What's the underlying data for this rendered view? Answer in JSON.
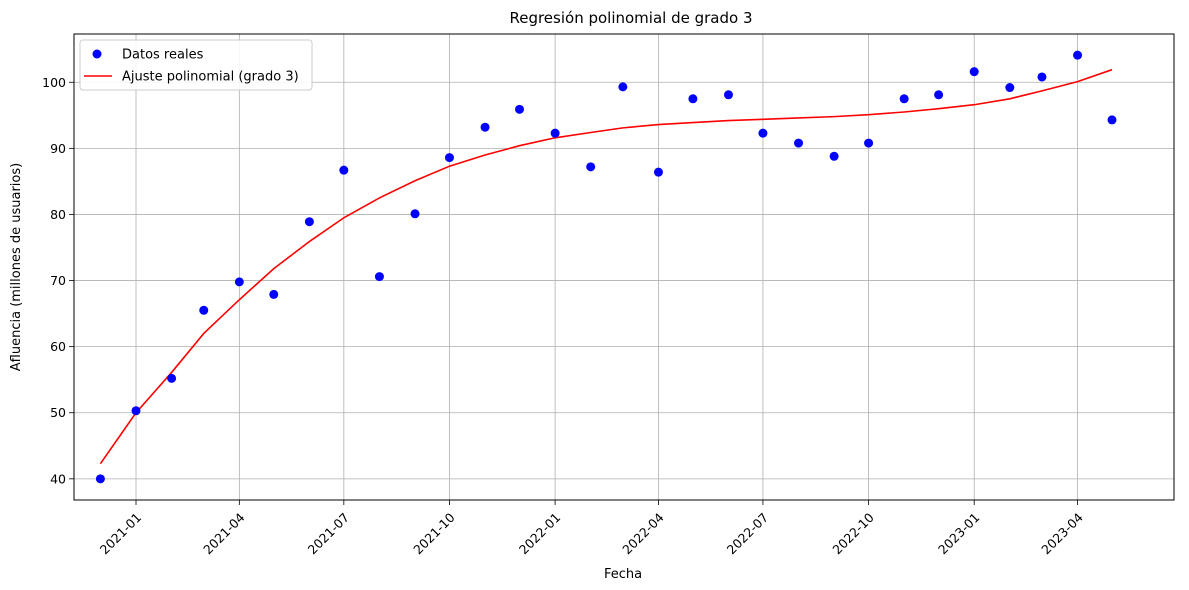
{
  "chart_data": {
    "type": "scatter",
    "title": "Regresión polinomial de grado 3",
    "xlabel": "Fecha",
    "ylabel": "Afluencia (millones de usuarios)",
    "x_axis": "date",
    "xlim": [
      "2020-11-08",
      "2023-06-24"
    ],
    "ylim": [
      36.8,
      107.3
    ],
    "x_ticks": [
      "2021-01",
      "2021-04",
      "2021-07",
      "2021-10",
      "2022-01",
      "2022-04",
      "2022-07",
      "2022-10",
      "2023-01",
      "2023-04"
    ],
    "y_ticks": [
      40,
      50,
      60,
      70,
      80,
      90,
      100
    ],
    "grid": true,
    "legend_position": "top-left",
    "series": [
      {
        "name": "Datos reales",
        "kind": "scatter",
        "color": "#0000ff",
        "points": [
          [
            "2020-12-01",
            40.0
          ],
          [
            "2021-01-01",
            50.3
          ],
          [
            "2021-02-01",
            55.2
          ],
          [
            "2021-03-01",
            65.5
          ],
          [
            "2021-04-01",
            69.8
          ],
          [
            "2021-05-01",
            67.9
          ],
          [
            "2021-06-01",
            78.9
          ],
          [
            "2021-07-01",
            86.7
          ],
          [
            "2021-08-01",
            70.6
          ],
          [
            "2021-09-01",
            80.1
          ],
          [
            "2021-10-01",
            88.6
          ],
          [
            "2021-11-01",
            93.2
          ],
          [
            "2021-12-01",
            95.9
          ],
          [
            "2022-01-01",
            92.3
          ],
          [
            "2022-02-01",
            87.2
          ],
          [
            "2022-03-01",
            99.3
          ],
          [
            "2022-04-01",
            86.4
          ],
          [
            "2022-05-01",
            97.5
          ],
          [
            "2022-06-01",
            98.1
          ],
          [
            "2022-07-01",
            92.3
          ],
          [
            "2022-08-01",
            90.8
          ],
          [
            "2022-09-01",
            88.8
          ],
          [
            "2022-10-01",
            90.8
          ],
          [
            "2022-11-01",
            97.5
          ],
          [
            "2022-12-01",
            98.1
          ],
          [
            "2023-01-01",
            101.6
          ],
          [
            "2023-02-01",
            99.2
          ],
          [
            "2023-03-01",
            100.8
          ],
          [
            "2023-04-01",
            104.1
          ],
          [
            "2023-05-01",
            94.3
          ]
        ]
      },
      {
        "name": "Ajuste polinomial (grado 3)",
        "kind": "line",
        "color": "#ff0000",
        "points": [
          [
            "2020-12-01",
            42.3
          ],
          [
            "2021-01-01",
            50.0
          ],
          [
            "2021-02-01",
            56.1
          ],
          [
            "2021-03-01",
            62.0
          ],
          [
            "2021-04-01",
            67.1
          ],
          [
            "2021-05-01",
            71.8
          ],
          [
            "2021-06-01",
            75.9
          ],
          [
            "2021-07-01",
            79.5
          ],
          [
            "2021-08-01",
            82.5
          ],
          [
            "2021-09-01",
            85.1
          ],
          [
            "2021-10-01",
            87.3
          ],
          [
            "2021-11-01",
            89.0
          ],
          [
            "2021-12-01",
            90.4
          ],
          [
            "2022-01-01",
            91.6
          ],
          [
            "2022-02-01",
            92.4
          ],
          [
            "2022-03-01",
            93.1
          ],
          [
            "2022-04-01",
            93.6
          ],
          [
            "2022-05-01",
            93.9
          ],
          [
            "2022-06-01",
            94.2
          ],
          [
            "2022-07-01",
            94.4
          ],
          [
            "2022-08-01",
            94.6
          ],
          [
            "2022-09-01",
            94.8
          ],
          [
            "2022-10-01",
            95.1
          ],
          [
            "2022-11-01",
            95.5
          ],
          [
            "2022-12-01",
            96.0
          ],
          [
            "2023-01-01",
            96.6
          ],
          [
            "2023-02-01",
            97.5
          ],
          [
            "2023-03-01",
            98.7
          ],
          [
            "2023-04-01",
            100.1
          ],
          [
            "2023-05-01",
            101.9
          ]
        ]
      }
    ]
  }
}
